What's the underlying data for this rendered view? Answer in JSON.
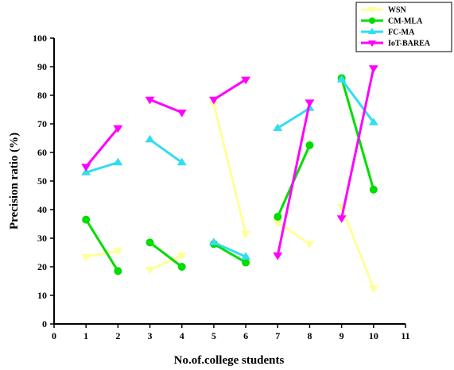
{
  "chart_data": {
    "type": "line",
    "xlabel": "No.of.college students",
    "ylabel": "Precision ratio (%)",
    "xlim": [
      0,
      11
    ],
    "ylim": [
      0,
      100
    ],
    "xticks": [
      0,
      1,
      2,
      3,
      4,
      5,
      6,
      7,
      8,
      9,
      10,
      11
    ],
    "yticks": [
      0,
      10,
      20,
      30,
      40,
      50,
      60,
      70,
      80,
      90,
      100
    ],
    "grid": false,
    "legend_position": "top-right",
    "series": [
      {
        "name": "WSN",
        "color": "#ffff99",
        "marker": "triangle-down",
        "segments": [
          [
            [
              1,
              23.5
            ],
            [
              2,
              25.5
            ]
          ],
          [
            [
              3,
              19
            ],
            [
              4,
              24
            ]
          ],
          [
            [
              5,
              77
            ],
            [
              6,
              31.5
            ]
          ],
          [
            [
              7,
              35.5
            ],
            [
              8,
              28
            ]
          ],
          [
            [
              9,
              41
            ],
            [
              10,
              12.5
            ]
          ]
        ]
      },
      {
        "name": "CM-MLA",
        "color": "#00dd00",
        "marker": "circle",
        "segments": [
          [
            [
              1,
              36.5
            ],
            [
              2,
              18.5
            ]
          ],
          [
            [
              3,
              28.5
            ],
            [
              4,
              20
            ]
          ],
          [
            [
              5,
              28
            ],
            [
              6,
              21.5
            ]
          ],
          [
            [
              7,
              37.5
            ],
            [
              8,
              62.5
            ]
          ],
          [
            [
              9,
              86
            ],
            [
              10,
              47
            ]
          ]
        ]
      },
      {
        "name": "FC-MA",
        "color": "#33ddee",
        "marker": "triangle-up",
        "segments": [
          [
            [
              1,
              53
            ],
            [
              2,
              56.5
            ]
          ],
          [
            [
              3,
              64.5
            ],
            [
              4,
              56.5
            ]
          ],
          [
            [
              5,
              28.5
            ],
            [
              6,
              23.5
            ]
          ],
          [
            [
              7,
              68.5
            ],
            [
              8,
              75.5
            ]
          ],
          [
            [
              9,
              85.5
            ],
            [
              10,
              70.5
            ]
          ]
        ]
      },
      {
        "name": "IoT-BAREA",
        "color": "#ff00ff",
        "marker": "triangle-down",
        "segments": [
          [
            [
              1,
              55
            ],
            [
              2,
              68.5
            ]
          ],
          [
            [
              3,
              78.5
            ],
            [
              4,
              74
            ]
          ],
          [
            [
              5,
              78.5
            ],
            [
              6,
              85.5
            ]
          ],
          [
            [
              7,
              24
            ],
            [
              8,
              77.5
            ]
          ],
          [
            [
              9,
              37
            ],
            [
              10,
              89.5
            ]
          ]
        ]
      }
    ]
  }
}
